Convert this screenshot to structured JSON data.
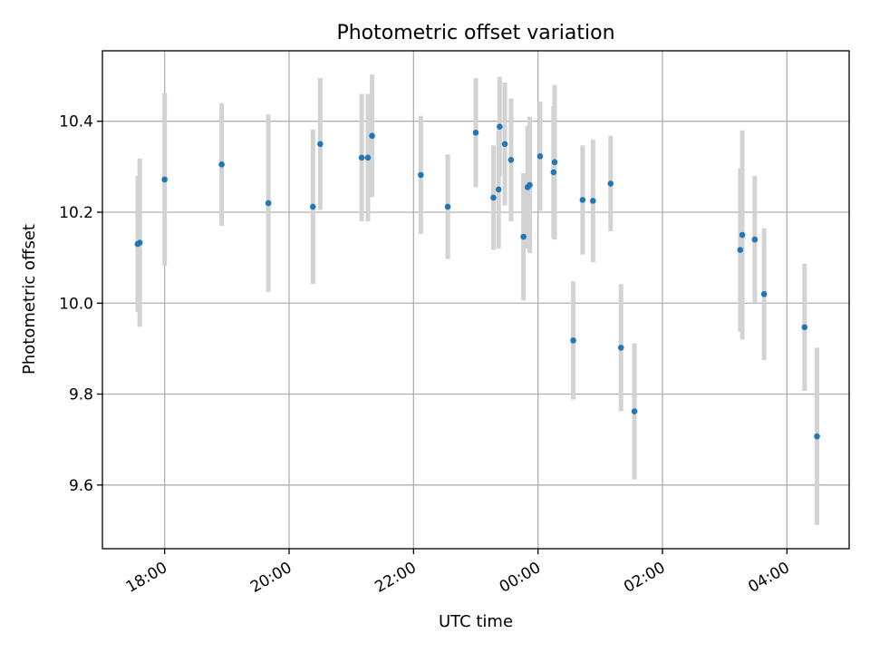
{
  "chart_data": {
    "type": "scatter",
    "title": "Photometric offset variation",
    "xlabel": "UTC time",
    "ylabel": "Photometric offset",
    "x_axis_kind": "time",
    "xlim": [
      "17:00",
      "05:00"
    ],
    "ylim": [
      9.46,
      10.555
    ],
    "grid": true,
    "x_ticks": [
      "18:00",
      "20:00",
      "22:00",
      "00:00",
      "02:00",
      "04:00"
    ],
    "y_ticks": [
      "9.6",
      "9.8",
      "10.0",
      "10.2",
      "10.4"
    ],
    "colors": {
      "point": "#1f77b4",
      "errorbar": "#d3d3d3",
      "grid": "#b0b0b0"
    },
    "points": [
      {
        "x": "17:34",
        "y": 10.13,
        "yerr": 0.15
      },
      {
        "x": "17:36",
        "y": 10.133,
        "yerr": 0.185
      },
      {
        "x": "18:00",
        "y": 10.272,
        "yerr": 0.19
      },
      {
        "x": "18:55",
        "y": 10.305,
        "yerr": 0.135
      },
      {
        "x": "19:40",
        "y": 10.22,
        "yerr": 0.195
      },
      {
        "x": "20:23",
        "y": 10.212,
        "yerr": 0.17
      },
      {
        "x": "20:30",
        "y": 10.35,
        "yerr": 0.145
      },
      {
        "x": "21:10",
        "y": 10.32,
        "yerr": 0.14
      },
      {
        "x": "21:16",
        "y": 10.32,
        "yerr": 0.14
      },
      {
        "x": "21:20",
        "y": 10.368,
        "yerr": 0.135
      },
      {
        "x": "22:07",
        "y": 10.282,
        "yerr": 0.13
      },
      {
        "x": "22:33",
        "y": 10.212,
        "yerr": 0.115
      },
      {
        "x": "23:00",
        "y": 10.375,
        "yerr": 0.12
      },
      {
        "x": "23:17",
        "y": 10.232,
        "yerr": 0.115
      },
      {
        "x": "23:22",
        "y": 10.25,
        "yerr": 0.13
      },
      {
        "x": "23:23",
        "y": 10.388,
        "yerr": 0.11
      },
      {
        "x": "23:28",
        "y": 10.35,
        "yerr": 0.135
      },
      {
        "x": "23:34",
        "y": 10.315,
        "yerr": 0.135
      },
      {
        "x": "23:46",
        "y": 10.146,
        "yerr": 0.14
      },
      {
        "x": "23:50",
        "y": 10.255,
        "yerr": 0.135
      },
      {
        "x": "23:52",
        "y": 10.26,
        "yerr": 0.15
      },
      {
        "x": "00:02",
        "y": 10.323,
        "yerr": 0.12
      },
      {
        "x": "00:15",
        "y": 10.288,
        "yerr": 0.145
      },
      {
        "x": "00:16",
        "y": 10.31,
        "yerr": 0.17
      },
      {
        "x": "00:34",
        "y": 9.918,
        "yerr": 0.13
      },
      {
        "x": "00:43",
        "y": 10.227,
        "yerr": 0.12
      },
      {
        "x": "00:53",
        "y": 10.225,
        "yerr": 0.135
      },
      {
        "x": "01:10",
        "y": 10.263,
        "yerr": 0.105
      },
      {
        "x": "01:20",
        "y": 9.902,
        "yerr": 0.14
      },
      {
        "x": "01:33",
        "y": 9.762,
        "yerr": 0.15
      },
      {
        "x": "03:15",
        "y": 10.117,
        "yerr": 0.18
      },
      {
        "x": "03:17",
        "y": 10.15,
        "yerr": 0.23
      },
      {
        "x": "03:29",
        "y": 10.14,
        "yerr": 0.14
      },
      {
        "x": "03:38",
        "y": 10.02,
        "yerr": 0.145
      },
      {
        "x": "04:17",
        "y": 9.947,
        "yerr": 0.14
      },
      {
        "x": "04:29",
        "y": 9.707,
        "yerr": 0.195
      }
    ]
  }
}
